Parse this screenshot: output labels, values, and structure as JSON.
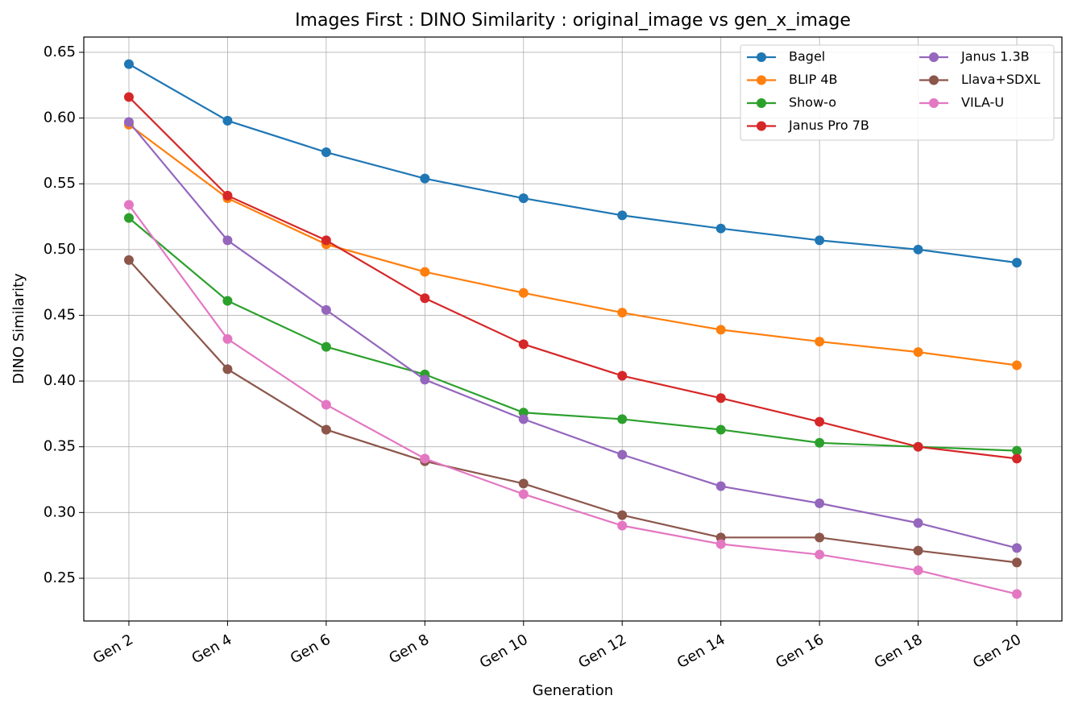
{
  "chart_data": {
    "type": "line",
    "title": "Images First : DINO Similarity : original_image vs gen_x_image",
    "x_label": "Generation",
    "y_label": "DINO Similarity",
    "categories": [
      "Gen 2",
      "Gen 4",
      "Gen 6",
      "Gen 8",
      "Gen 10",
      "Gen 12",
      "Gen 14",
      "Gen 16",
      "Gen 18",
      "Gen 20"
    ],
    "series": [
      {
        "name": "Bagel",
        "color": "#1f77b4",
        "values": [
          0.641,
          0.598,
          0.574,
          0.554,
          0.539,
          0.526,
          0.516,
          0.507,
          0.5,
          0.49
        ]
      },
      {
        "name": "BLIP 4B",
        "color": "#ff7f0e",
        "values": [
          0.595,
          0.539,
          0.504,
          0.483,
          0.467,
          0.452,
          0.439,
          0.43,
          0.422,
          0.412
        ]
      },
      {
        "name": "Show-o",
        "color": "#2ca02c",
        "values": [
          0.524,
          0.461,
          0.426,
          0.405,
          0.376,
          0.371,
          0.363,
          0.353,
          0.35,
          0.347
        ]
      },
      {
        "name": "Janus Pro 7B",
        "color": "#d62728",
        "values": [
          0.616,
          0.541,
          0.507,
          0.463,
          0.428,
          0.404,
          0.387,
          0.369,
          0.35,
          0.341
        ]
      },
      {
        "name": "Janus 1.3B",
        "color": "#9467bd",
        "values": [
          0.597,
          0.507,
          0.454,
          0.401,
          0.371,
          0.344,
          0.32,
          0.307,
          0.292,
          0.273
        ]
      },
      {
        "name": "Llava+SDXL",
        "color": "#8c564b",
        "values": [
          0.492,
          0.409,
          0.363,
          0.339,
          0.322,
          0.298,
          0.281,
          0.281,
          0.271,
          0.262
        ]
      },
      {
        "name": "VILA-U",
        "color": "#e377c2",
        "values": [
          0.534,
          0.432,
          0.382,
          0.341,
          0.314,
          0.29,
          0.276,
          0.268,
          0.256,
          0.238
        ]
      }
    ],
    "ylim": [
      0.2175,
      0.6616
    ],
    "yticks": [
      0.25,
      {
        "value": 0.3,
        "label": "0.30"
      },
      0.35,
      {
        "value": 0.4,
        "label": "0.40"
      },
      0.45,
      {
        "value": 0.5,
        "label": "0.50"
      },
      0.55,
      {
        "value": 0.6,
        "label": "0.60"
      },
      0.65
    ],
    "grid": true,
    "legend": "upper right"
  }
}
